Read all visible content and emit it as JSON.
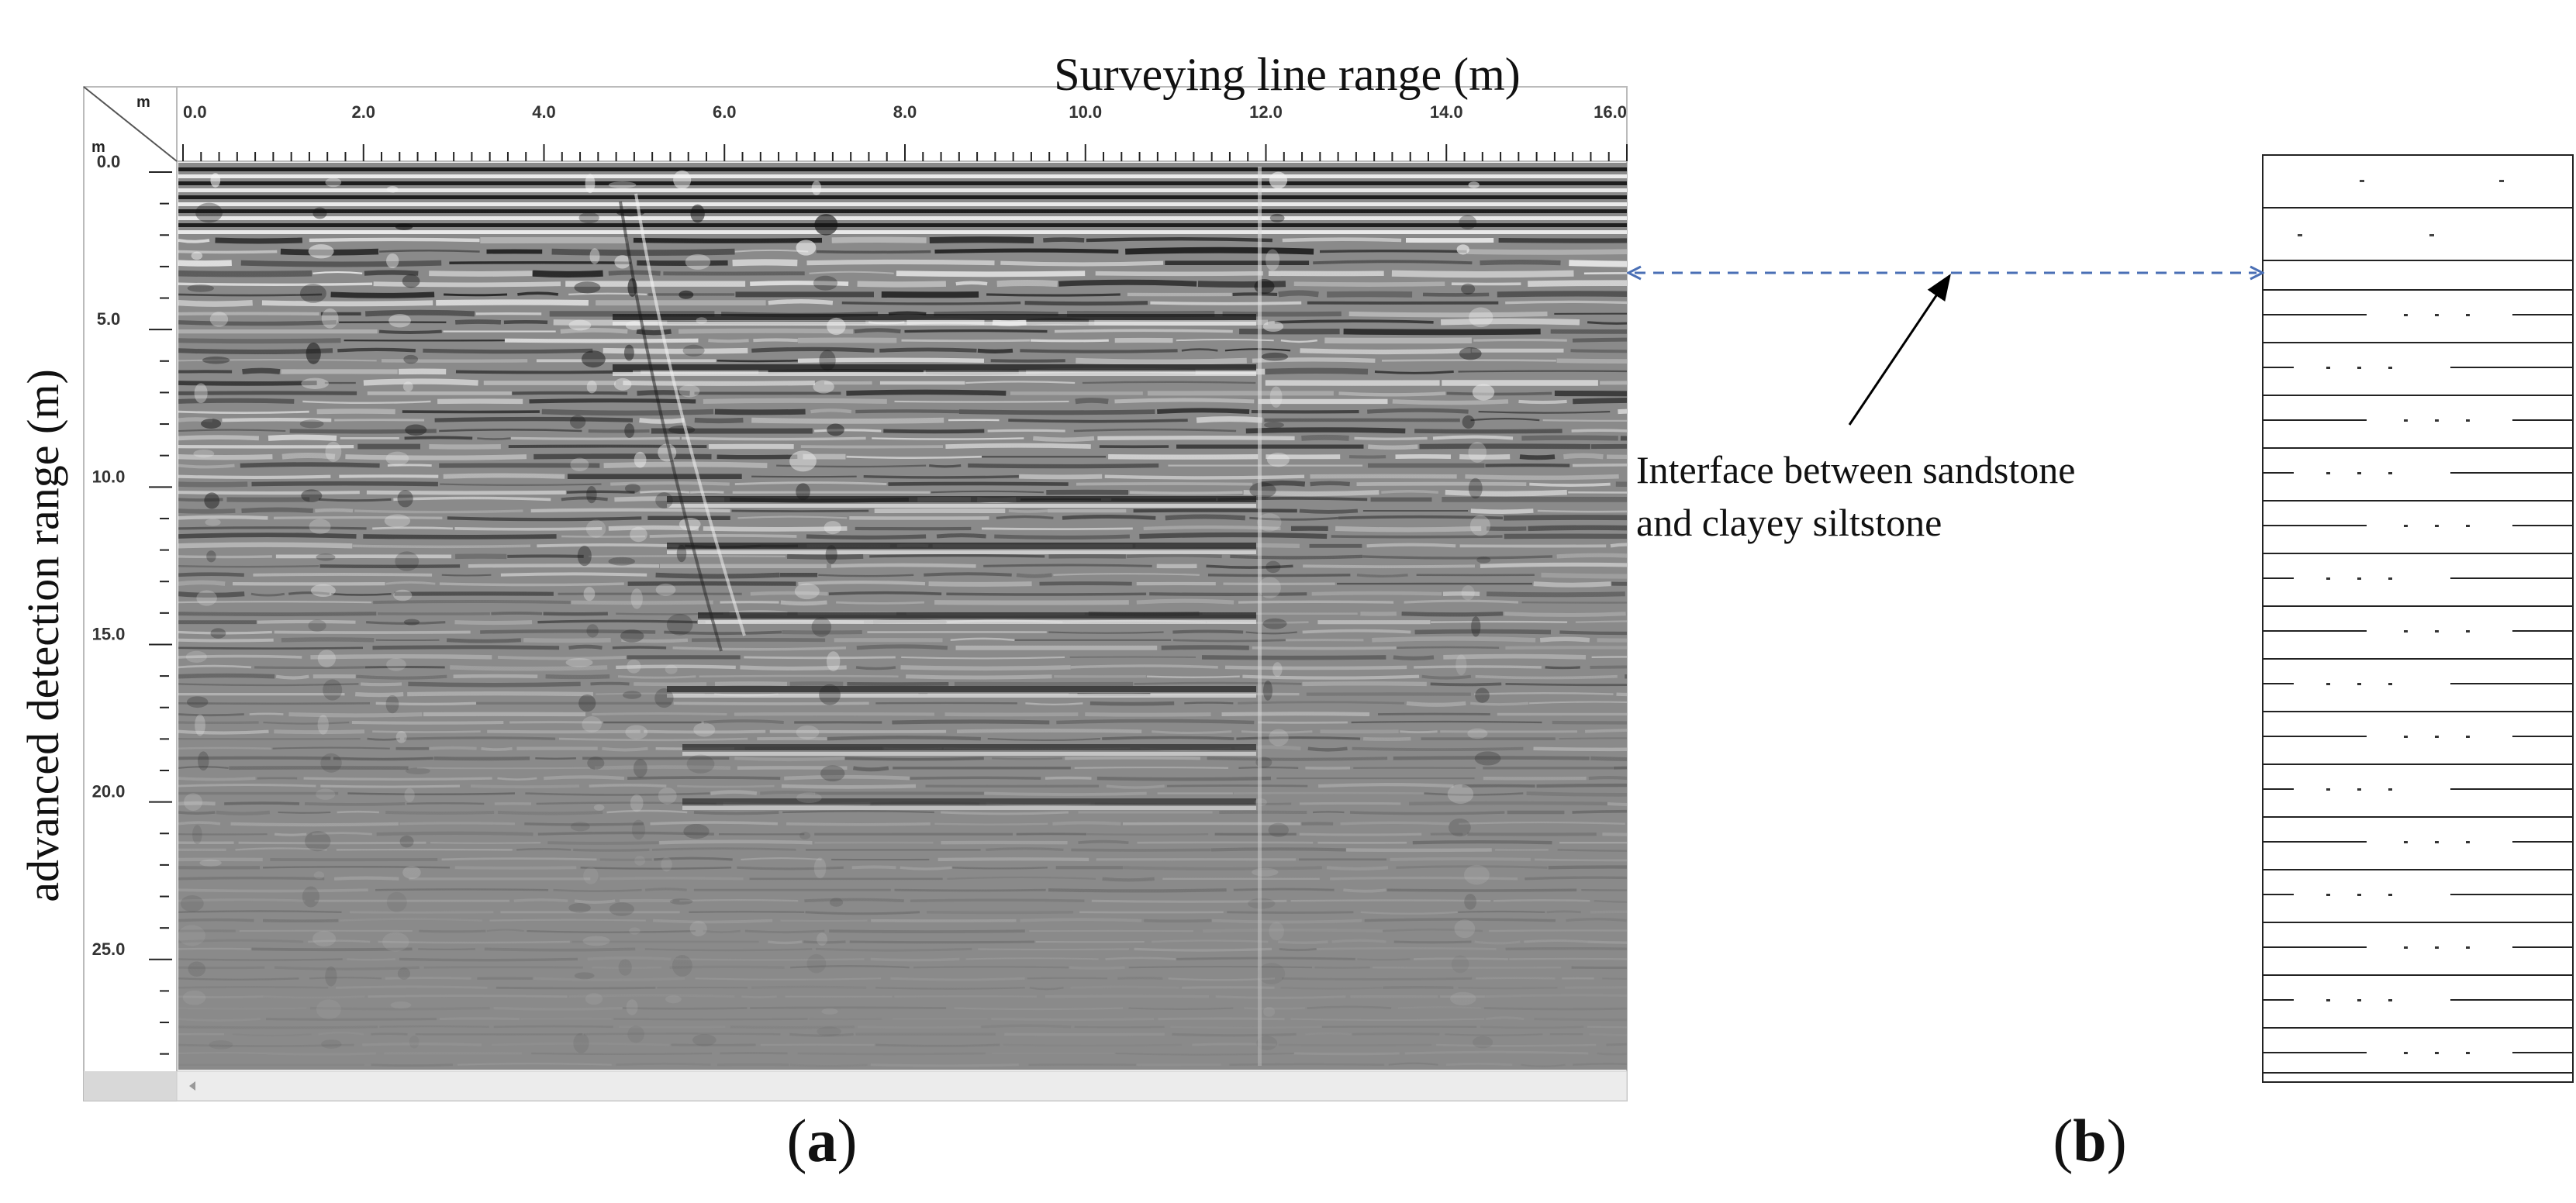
{
  "figure": {
    "x_axis_title": "Surveying line range (m)",
    "y_axis_title": "advanced detection range (m)",
    "panel_a_label": "a",
    "panel_b_label": "b",
    "corner_unit_x": "m",
    "corner_unit_y": "m",
    "annotation_line1": "Interface between sandstone",
    "annotation_line2": "and clayey siltstone",
    "x_ticks": [
      "0.0",
      "2.0",
      "4.0",
      "6.0",
      "8.0",
      "10.0",
      "12.0",
      "14.0",
      "16.0"
    ],
    "y_ticks": [
      "0.0",
      "5.0",
      "10.0",
      "15.0",
      "20.0",
      "25.0"
    ],
    "colors": {
      "radargram_background": "#8a8a8a",
      "reflection_dark": "#111111",
      "reflection_light": "#f5f5f5",
      "interface_arrow": "#4a6fb5",
      "pointer_arrow": "#000000"
    }
  }
}
